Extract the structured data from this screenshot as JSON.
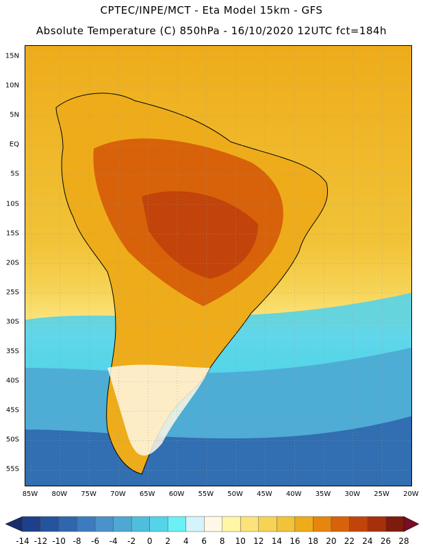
{
  "header": {
    "line1": "CPTEC/INPE/MCT -  Eta Model 15km - GFS",
    "line2": "Absolute Temperature (C) 850hPa - 16/10/2020 12UTC fct=184h"
  },
  "map": {
    "lat_labels": [
      "15N",
      "10N",
      "5N",
      "EQ",
      "5S",
      "10S",
      "15S",
      "20S",
      "25S",
      "30S",
      "35S",
      "40S",
      "45S",
      "50S",
      "55S"
    ],
    "lon_labels": [
      "85W",
      "80W",
      "75W",
      "70W",
      "65W",
      "60W",
      "55W",
      "50W",
      "45W",
      "40W",
      "35W",
      "30W",
      "25W",
      "20W"
    ]
  },
  "colorbar": {
    "labels": [
      "-14",
      "-12",
      "-10",
      "-8",
      "-6",
      "-4",
      "-2",
      "0",
      "2",
      "4",
      "6",
      "8",
      "10",
      "12",
      "14",
      "16",
      "18",
      "20",
      "22",
      "24",
      "26",
      "28"
    ],
    "colors": [
      "#1d3f8c",
      "#24539f",
      "#2f67ae",
      "#3c7bbd",
      "#4a92c9",
      "#4ea8d3",
      "#4fbedd",
      "#55d3e8",
      "#6af0f5",
      "#d3f4fb",
      "#fff8e6",
      "#fff6a6",
      "#fbe37a",
      "#f6d355",
      "#f1c338",
      "#eeac1a",
      "#e7860c",
      "#d76209",
      "#c2440a",
      "#a5300b",
      "#7d1c0c"
    ],
    "under_color": "#1a2d6b",
    "over_color": "#7a0d22"
  },
  "colors": {
    "ocean_warm": "#efb029",
    "land_hot": "#c8520e",
    "ocean_cold": "#4fbfdd",
    "ocean_deep": "#2f67ae"
  }
}
